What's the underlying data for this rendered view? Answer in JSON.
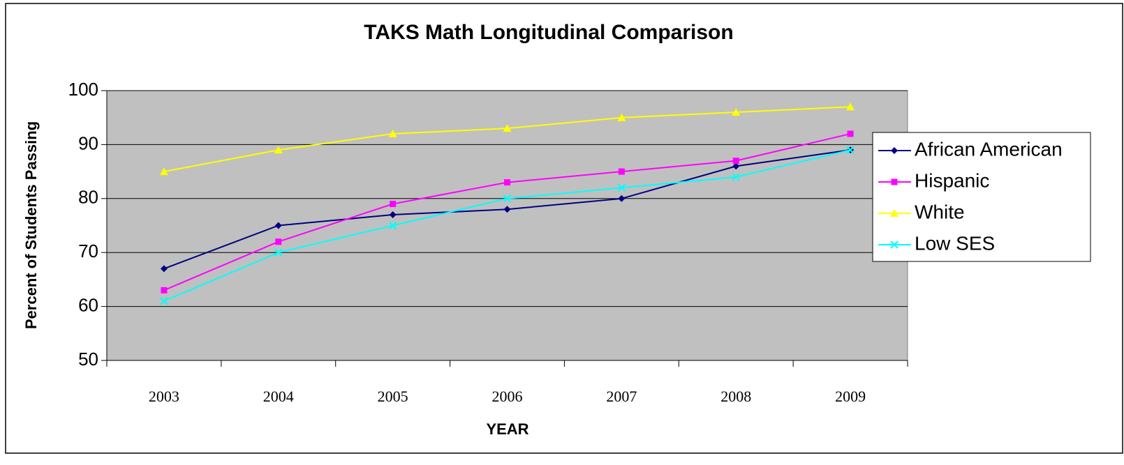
{
  "chart_data": {
    "type": "line",
    "title": "TAKS Math Longitudinal Comparison",
    "x_label": "YEAR",
    "y_label": "Percent of Students Passing",
    "categories": [
      "2003",
      "2004",
      "2005",
      "2006",
      "2007",
      "2008",
      "2009"
    ],
    "series": [
      {
        "name": "African American",
        "color": "#000080",
        "marker": "diamond",
        "values": [
          67,
          75,
          77,
          78,
          80,
          86,
          89
        ]
      },
      {
        "name": "Hispanic",
        "color": "#ff00ff",
        "marker": "square",
        "values": [
          63,
          72,
          79,
          83,
          85,
          87,
          92
        ]
      },
      {
        "name": "White",
        "color": "#ffff00",
        "marker": "triangle",
        "values": [
          85,
          89,
          92,
          93,
          95,
          96,
          97
        ]
      },
      {
        "name": "Low SES",
        "color": "#00ffff",
        "marker": "x",
        "values": [
          61,
          70,
          75,
          80,
          82,
          84,
          89
        ]
      }
    ],
    "ylim": [
      50,
      100
    ],
    "yticks": [
      50,
      60,
      70,
      80,
      90,
      100
    ],
    "grid": true,
    "legend": "right"
  }
}
